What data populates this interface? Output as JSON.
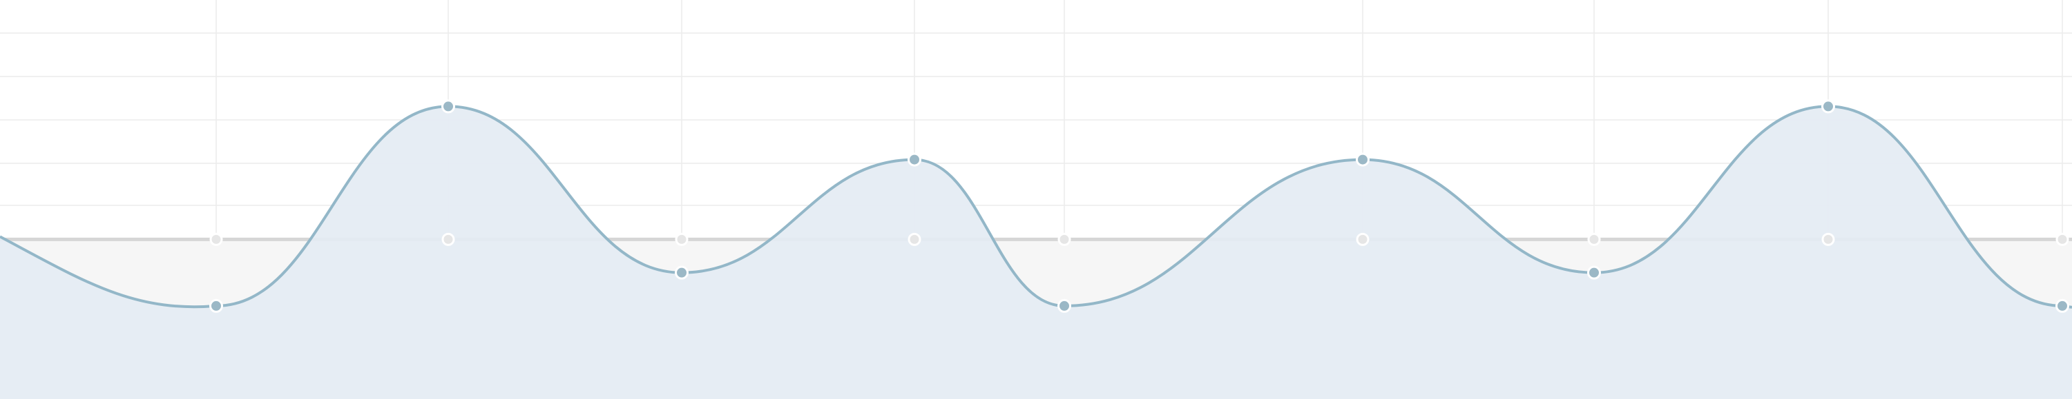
{
  "chart_data": {
    "type": "area",
    "title": "",
    "xlabel": "",
    "ylabel": "",
    "grid": true,
    "legend": "none",
    "x": [
      0,
      1,
      2,
      3,
      4,
      5,
      6,
      7,
      8
    ],
    "ylim": [
      -2.4,
      3.6
    ],
    "series": [
      {
        "values": [
          -1,
          2,
          -0.5,
          1.2,
          -1,
          1.2,
          -0.5,
          2,
          -1
        ],
        "color": "#93b7c8",
        "fill": "#e4ecf3"
      },
      {
        "values": [
          0,
          0,
          0,
          0,
          0,
          0,
          0,
          0,
          0
        ],
        "color": "#d6d6d6",
        "fill": "#f6f6f6"
      }
    ]
  }
}
